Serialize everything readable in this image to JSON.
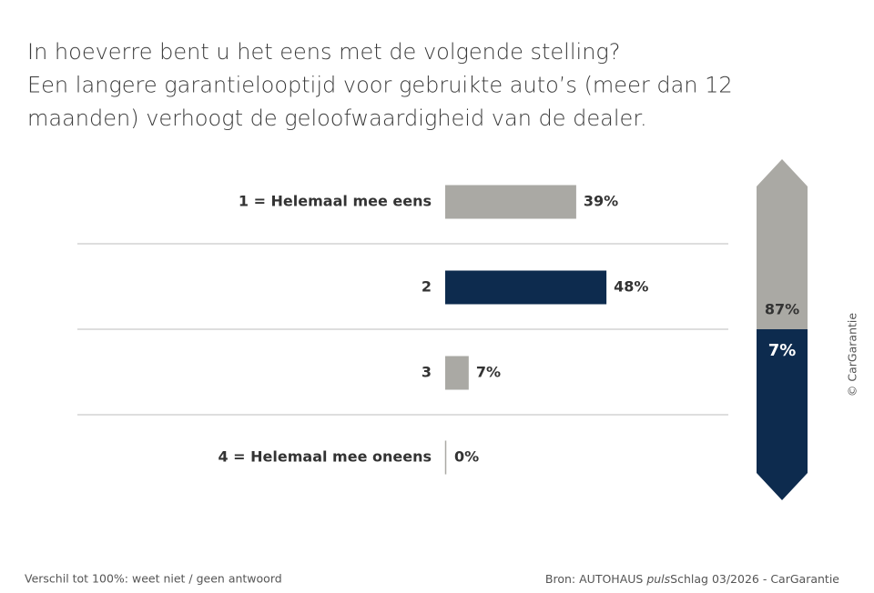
{
  "chart_data": {
    "type": "bar",
    "title": [
      "In hoeverre bent u het eens met de volgende stelling?",
      "Een langere garantielooptijd voor gebruikte auto’s (meer dan 12",
      "maanden) verhoogt de geloofwaardigheid van de dealer."
    ],
    "categories": [
      "1 = Helemaal mee eens",
      "2",
      "3",
      "4 = Helemaal mee oneens"
    ],
    "values": [
      39,
      48,
      7,
      0
    ],
    "value_labels": [
      "39%",
      "48%",
      "7%",
      "0%"
    ],
    "colors": [
      "#aaa9a4",
      "#0d2b4e",
      "#aaa9a4",
      "#aaa9a4"
    ],
    "xlim": [
      0,
      100
    ],
    "summary": {
      "values": [
        87,
        7
      ],
      "value_labels": [
        "87%",
        "7%"
      ],
      "colors": [
        "#aaa9a4",
        "#0d2b4e"
      ]
    },
    "footnote": "Verschil tot 100%: weet niet / geen antwoord",
    "source": {
      "prefix": "Bron: AUTOHAUS",
      "italic": "puls",
      "suffix": "Schlag 03/2026 - CarGarantie"
    },
    "copyright": "© CarGarantie"
  }
}
